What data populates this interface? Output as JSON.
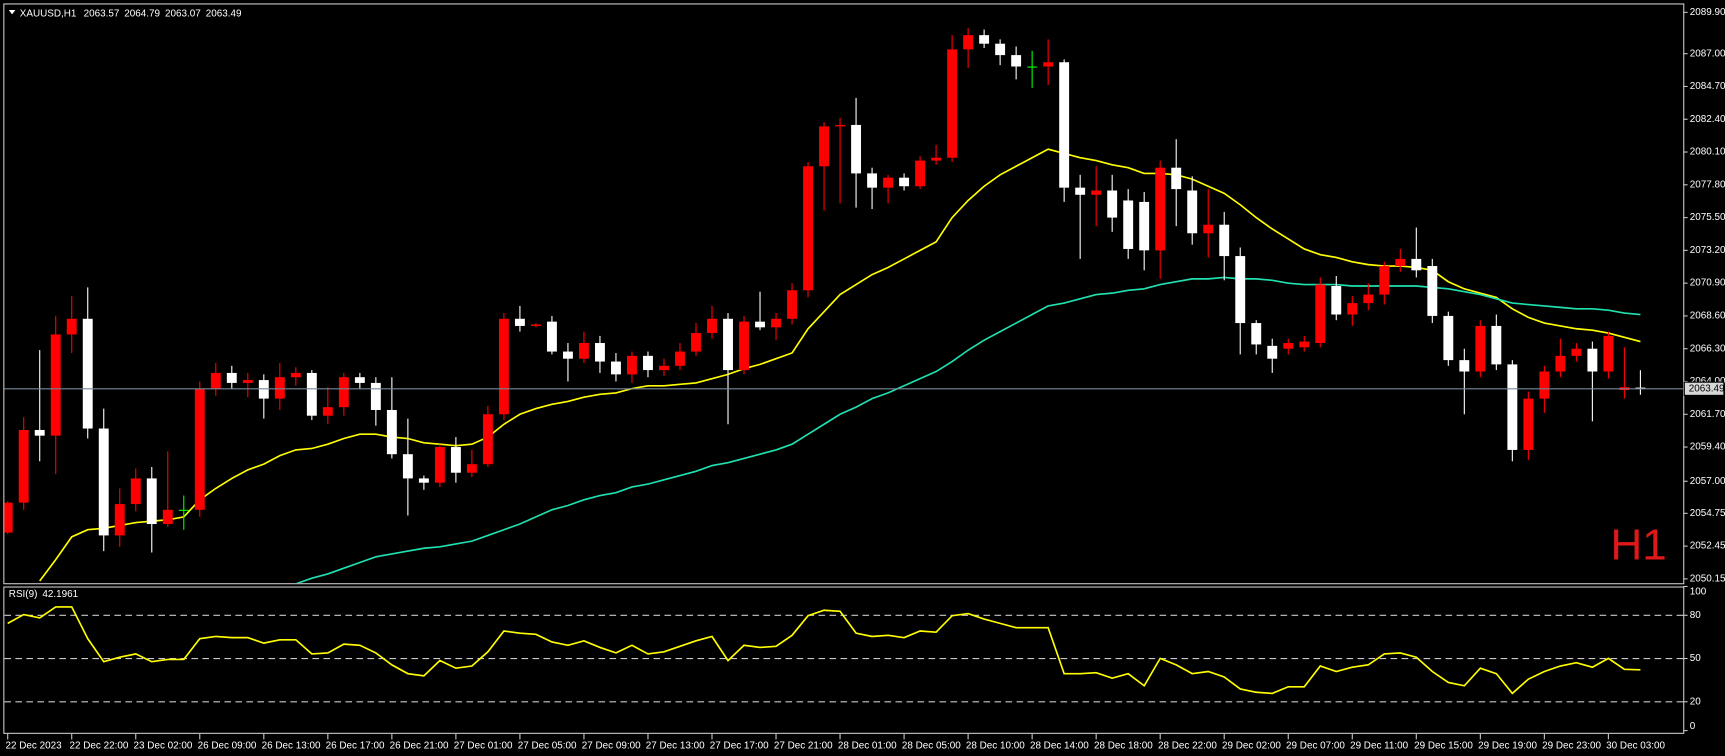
{
  "chart_data": {
    "type": "candlestick",
    "symbol": "XAUUSD,H1",
    "watermark": "H1",
    "categories": [
      "22 Dec 2023",
      null,
      null,
      null,
      "22 Dec 22:00",
      null,
      null,
      null,
      "23 Dec 02:00",
      null,
      null,
      null,
      "26 Dec 09:00",
      null,
      null,
      null,
      "26 Dec 13:00",
      null,
      null,
      null,
      "26 Dec 17:00",
      null,
      null,
      null,
      "26 Dec 21:00",
      null,
      null,
      null,
      "27 Dec 01:00",
      null,
      null,
      null,
      "27 Dec 05:00",
      null,
      null,
      null,
      "27 Dec 09:00",
      null,
      null,
      null,
      "27 Dec 13:00",
      null,
      null,
      null,
      "27 Dec 17:00",
      null,
      null,
      null,
      "27 Dec 21:00",
      null,
      null,
      null,
      "28 Dec 01:00",
      null,
      null,
      null,
      "28 Dec 05:00",
      null,
      null,
      null,
      "28 Dec 10:00",
      null,
      null,
      null,
      "28 Dec 14:00",
      null,
      null,
      null,
      "28 Dec 18:00",
      null,
      null,
      null,
      "28 Dec 22:00",
      null,
      null,
      null,
      "29 Dec 02:00",
      null,
      null,
      null,
      "29 Dec 07:00",
      null,
      null,
      null,
      "29 Dec 11:00",
      null,
      null,
      null,
      "29 Dec 15:00",
      null,
      null,
      null,
      "29 Dec 19:00",
      null,
      null,
      null,
      "29 Dec 23:00",
      null,
      null,
      null,
      "30 Dec 03:00",
      null,
      null
    ],
    "open": [
      2053.4,
      2055.5,
      2060.6,
      2060.2,
      2067.3,
      2068.4,
      2060.7,
      2053.2,
      2055.4,
      2057.2,
      2054.0,
      2055.0,
      2055.0,
      2063.5,
      2064.6,
      2063.9,
      2064.1,
      2062.8,
      2064.3,
      2064.6,
      2061.6,
      2062.2,
      2064.3,
      2063.9,
      2062.0,
      2058.9,
      2057.2,
      2056.9,
      2059.4,
      2057.6,
      2058.2,
      2061.7,
      2068.4,
      2067.9,
      2068.2,
      2066.1,
      2065.6,
      2066.7,
      2065.4,
      2064.5,
      2065.8,
      2064.8,
      2065.1,
      2066.1,
      2067.4,
      2068.4,
      2064.8,
      2068.2,
      2067.8,
      2068.4,
      2070.4,
      2079.1,
      2081.9,
      2082.0,
      2078.6,
      2077.6,
      2078.3,
      2077.7,
      2079.5,
      2079.7,
      2087.3,
      2088.3,
      2087.7,
      2086.9,
      2086.1,
      2086.1,
      2086.4,
      2077.6,
      2077.1,
      2077.4,
      2076.7,
      2076.6,
      2073.2,
      2079.0,
      2077.4,
      2074.4,
      2075.0,
      2072.8,
      2068.1,
      2066.5,
      2066.3,
      2066.4,
      2066.7,
      2070.7,
      2068.7,
      2069.5,
      2070.1,
      2072.1,
      2072.6,
      2072.1,
      2068.6,
      2065.5,
      2064.7,
      2067.9,
      2065.2,
      2059.2,
      2062.8,
      2064.7,
      2065.8,
      2066.3,
      2064.7,
      2063.4,
      2063.57
    ],
    "high": [
      2055.6,
      2061.5,
      2066.2,
      2068.6,
      2070.0,
      2070.6,
      2062.1,
      2056.5,
      2057.9,
      2058.0,
      2059.1,
      2056.0,
      2064.0,
      2065.3,
      2065.1,
      2064.6,
      2064.5,
      2065.3,
      2065.0,
      2064.8,
      2063.6,
      2064.6,
      2064.6,
      2064.3,
      2064.3,
      2061.4,
      2057.4,
      2059.6,
      2060.1,
      2059.2,
      2062.3,
      2068.8,
      2069.3,
      2068.1,
      2068.6,
      2066.7,
      2067.5,
      2067.2,
      2066.0,
      2066.1,
      2066.1,
      2065.6,
      2066.7,
      2068.1,
      2069.3,
      2068.8,
      2068.6,
      2070.3,
      2068.8,
      2070.9,
      2079.4,
      2082.2,
      2082.5,
      2083.9,
      2079.0,
      2078.5,
      2078.6,
      2079.8,
      2080.6,
      2088.3,
      2088.8,
      2088.7,
      2088.0,
      2087.5,
      2087.2,
      2088.0,
      2086.6,
      2078.5,
      2079.1,
      2078.5,
      2077.5,
      2077.3,
      2079.5,
      2081.0,
      2078.4,
      2077.5,
      2075.9,
      2073.4,
      2068.3,
      2067.0,
      2067.0,
      2067.2,
      2071.3,
      2071.4,
      2070.0,
      2070.9,
      2072.4,
      2073.3,
      2074.8,
      2072.6,
      2068.9,
      2066.3,
      2068.3,
      2068.7,
      2065.5,
      2063.3,
      2065.1,
      2067.0,
      2066.7,
      2066.8,
      2067.5,
      2066.4,
      2064.79
    ],
    "low": [
      2053.3,
      2055.0,
      2058.4,
      2057.5,
      2066.0,
      2060.0,
      2052.1,
      2052.4,
      2054.9,
      2052.0,
      2053.8,
      2053.6,
      2054.5,
      2063.0,
      2063.5,
      2062.9,
      2061.4,
      2062.0,
      2063.7,
      2061.3,
      2061.0,
      2061.6,
      2063.5,
      2060.9,
      2058.6,
      2054.6,
      2056.4,
      2056.6,
      2056.9,
      2057.3,
      2058.0,
      2061.3,
      2067.5,
      2067.8,
      2065.9,
      2064.0,
      2065.3,
      2064.6,
      2064.0,
      2063.9,
      2064.3,
      2064.4,
      2064.8,
      2065.8,
      2067.0,
      2061.0,
      2064.5,
      2067.6,
      2066.9,
      2068.0,
      2069.9,
      2076.0,
      2076.5,
      2076.2,
      2076.1,
      2076.5,
      2077.4,
      2077.5,
      2079.2,
      2079.4,
      2086.0,
      2087.4,
      2086.2,
      2085.2,
      2084.6,
      2084.8,
      2076.6,
      2072.6,
      2074.9,
      2074.5,
      2072.6,
      2071.8,
      2071.2,
      2074.9,
      2073.6,
      2072.7,
      2071.1,
      2065.9,
      2065.9,
      2064.6,
      2065.9,
      2066.1,
      2066.4,
      2068.3,
      2067.9,
      2069.0,
      2069.4,
      2071.7,
      2071.3,
      2068.1,
      2065.1,
      2061.7,
      2064.3,
      2064.8,
      2058.4,
      2058.5,
      2061.8,
      2064.3,
      2065.4,
      2061.2,
      2064.2,
      2062.8,
      2063.07
    ],
    "close": [
      2055.5,
      2060.6,
      2060.2,
      2067.3,
      2068.4,
      2060.7,
      2053.2,
      2055.4,
      2057.2,
      2054.0,
      2055.0,
      2055.0,
      2063.5,
      2064.6,
      2063.9,
      2064.1,
      2062.8,
      2064.3,
      2064.6,
      2061.6,
      2062.2,
      2064.3,
      2063.9,
      2062.0,
      2058.9,
      2057.2,
      2056.9,
      2059.4,
      2057.6,
      2058.2,
      2061.7,
      2068.4,
      2067.9,
      2068.0,
      2066.1,
      2065.6,
      2066.7,
      2065.4,
      2064.5,
      2065.8,
      2064.8,
      2065.1,
      2066.1,
      2067.4,
      2068.4,
      2064.8,
      2068.2,
      2067.8,
      2068.4,
      2070.4,
      2079.1,
      2081.9,
      2082.0,
      2078.6,
      2077.6,
      2078.3,
      2077.7,
      2079.5,
      2079.7,
      2087.3,
      2088.3,
      2087.7,
      2086.9,
      2086.1,
      2086.1,
      2086.4,
      2077.6,
      2077.1,
      2077.4,
      2075.5,
      2073.3,
      2073.2,
      2079.0,
      2077.5,
      2074.4,
      2075.0,
      2072.8,
      2068.1,
      2066.6,
      2065.6,
      2066.7,
      2066.8,
      2070.8,
      2068.7,
      2069.5,
      2070.1,
      2072.1,
      2072.6,
      2071.8,
      2068.6,
      2065.5,
      2064.7,
      2067.9,
      2065.2,
      2059.2,
      2062.8,
      2064.7,
      2065.8,
      2066.3,
      2064.7,
      2067.2,
      2063.6,
      2063.49
    ],
    "up_color": "#ff0000",
    "down_color": "#ffffff",
    "doji_color": "#00ff00",
    "price_line_color": "#778899",
    "overlays": [
      {
        "color": "#ffff00",
        "values": [
          null,
          null,
          2050.0,
          2051.5,
          2053.1,
          2053.6,
          2053.7,
          2053.9,
          2054.1,
          2054.2,
          2054.3,
          2054.5,
          2055.7,
          2056.5,
          2057.2,
          2057.8,
          2058.2,
          2058.8,
          2059.2,
          2059.3,
          2059.6,
          2060.0,
          2060.3,
          2060.3,
          2060.1,
          2060.0,
          2059.7,
          2059.6,
          2059.5,
          2059.6,
          2060.1,
          2061.0,
          2061.7,
          2062.1,
          2062.4,
          2062.6,
          2062.9,
          2063.1,
          2063.2,
          2063.5,
          2063.7,
          2063.7,
          2063.8,
          2063.9,
          2064.2,
          2064.5,
          2064.9,
          2065.2,
          2065.6,
          2066.0,
          2067.7,
          2068.9,
          2070.1,
          2070.8,
          2071.5,
          2072.0,
          2072.6,
          2073.2,
          2073.8,
          2075.5,
          2076.7,
          2077.7,
          2078.5,
          2079.1,
          2079.7,
          2080.3,
          2080.0,
          2079.7,
          2079.5,
          2079.2,
          2079.0,
          2078.6,
          2078.6,
          2078.5,
          2078.2,
          2077.7,
          2077.2,
          2076.4,
          2075.5,
          2074.7,
          2074.0,
          2073.3,
          2072.9,
          2072.7,
          2072.4,
          2072.2,
          2072.1,
          2072.1,
          2072.0,
          2071.8,
          2071.0,
          2070.5,
          2070.2,
          2069.9,
          2069.1,
          2068.5,
          2068.1,
          2067.9,
          2067.7,
          2067.6,
          2067.4,
          2067.1,
          2066.8
        ]
      },
      {
        "color": "#20e0b0",
        "values": [
          null,
          null,
          null,
          null,
          null,
          null,
          null,
          null,
          null,
          null,
          null,
          null,
          null,
          null,
          null,
          null,
          null,
          null,
          2049.8,
          2050.2,
          2050.5,
          2050.9,
          2051.3,
          2051.7,
          2051.9,
          2052.1,
          2052.3,
          2052.4,
          2052.6,
          2052.8,
          2053.2,
          2053.6,
          2054.0,
          2054.5,
          2055.0,
          2055.3,
          2055.7,
          2056.0,
          2056.2,
          2056.6,
          2056.8,
          2057.1,
          2057.4,
          2057.7,
          2058.1,
          2058.3,
          2058.6,
          2058.9,
          2059.2,
          2059.6,
          2060.3,
          2061.0,
          2061.7,
          2062.2,
          2062.8,
          2063.2,
          2063.7,
          2064.2,
          2064.7,
          2065.4,
          2066.2,
          2066.9,
          2067.5,
          2068.1,
          2068.7,
          2069.3,
          2069.5,
          2069.8,
          2070.1,
          2070.2,
          2070.4,
          2070.5,
          2070.8,
          2071.0,
          2071.2,
          2071.2,
          2071.3,
          2071.2,
          2071.2,
          2071.1,
          2070.9,
          2070.8,
          2070.8,
          2070.8,
          2070.7,
          2070.7,
          2070.7,
          2070.7,
          2070.7,
          2070.6,
          2070.5,
          2070.3,
          2070.1,
          2069.8,
          2069.5,
          2069.4,
          2069.3,
          2069.2,
          2069.1,
          2069.1,
          2069.0,
          2068.8,
          2068.7
        ]
      }
    ],
    "ylim": [
      2049.85,
      2090.45
    ],
    "yticks": [
      {
        "value": 2089.9,
        "label": "2089.90"
      },
      {
        "value": 2087.0,
        "label": "2087.00"
      },
      {
        "value": 2084.7,
        "label": "2084.70"
      },
      {
        "value": 2082.4,
        "label": "2082.40"
      },
      {
        "value": 2080.1,
        "label": "2080.10"
      },
      {
        "value": 2077.8,
        "label": "2077.80"
      },
      {
        "value": 2075.5,
        "label": "2075.50"
      },
      {
        "value": 2073.2,
        "label": "2073.20"
      },
      {
        "value": 2070.9,
        "label": "2070.90"
      },
      {
        "value": 2068.6,
        "label": "2068.60"
      },
      {
        "value": 2066.3,
        "label": "2066.30"
      },
      {
        "value": 2064.0,
        "label": "2064.00"
      },
      {
        "value": 2061.7,
        "label": "2061.70"
      },
      {
        "value": 2059.4,
        "label": "2059.40"
      },
      {
        "value": 2057.0,
        "label": "2057.00"
      },
      {
        "value": 2054.75,
        "label": "2054.75"
      },
      {
        "value": 2052.45,
        "label": "2052.45"
      },
      {
        "value": 2050.15,
        "label": "2050.15"
      }
    ],
    "rsi": {
      "name": "RSI(9)",
      "color": "#ffff00",
      "values": [
        74.4,
        80.5,
        78.2,
        85.8,
        85.8,
        63.8,
        47.8,
        50.9,
        53.2,
        47.8,
        49.4,
        49.4,
        63.8,
        65.3,
        64.5,
        64.5,
        60.7,
        63.0,
        63.0,
        53.2,
        53.9,
        60.0,
        59.2,
        53.9,
        45.6,
        39.5,
        38.0,
        48.6,
        43.3,
        44.8,
        54.7,
        69.1,
        67.6,
        66.8,
        61.5,
        59.2,
        62.3,
        57.7,
        53.9,
        59.2,
        53.2,
        54.7,
        58.5,
        62.3,
        65.3,
        48.6,
        59.2,
        57.7,
        58.5,
        66.1,
        79.7,
        83.5,
        82.8,
        67.6,
        65.3,
        66.1,
        64.5,
        69.1,
        68.3,
        79.7,
        81.2,
        77.4,
        74.4,
        71.4,
        71.4,
        71.4,
        39.5,
        39.5,
        40.2,
        36.4,
        39.5,
        31.1,
        50.1,
        45.6,
        39.5,
        41.0,
        37.2,
        28.9,
        26.6,
        25.8,
        30.4,
        30.4,
        44.8,
        41.0,
        44.0,
        45.6,
        53.2,
        53.9,
        50.9,
        41.0,
        33.4,
        31.1,
        43.3,
        39.5,
        25.8,
        35.7,
        41.0,
        44.8,
        47.1,
        44.0,
        50.1,
        42.5,
        42.1961
      ],
      "ylim": [
        0,
        100
      ],
      "yticks": [
        100,
        80,
        50,
        20,
        0
      ]
    }
  }
}
